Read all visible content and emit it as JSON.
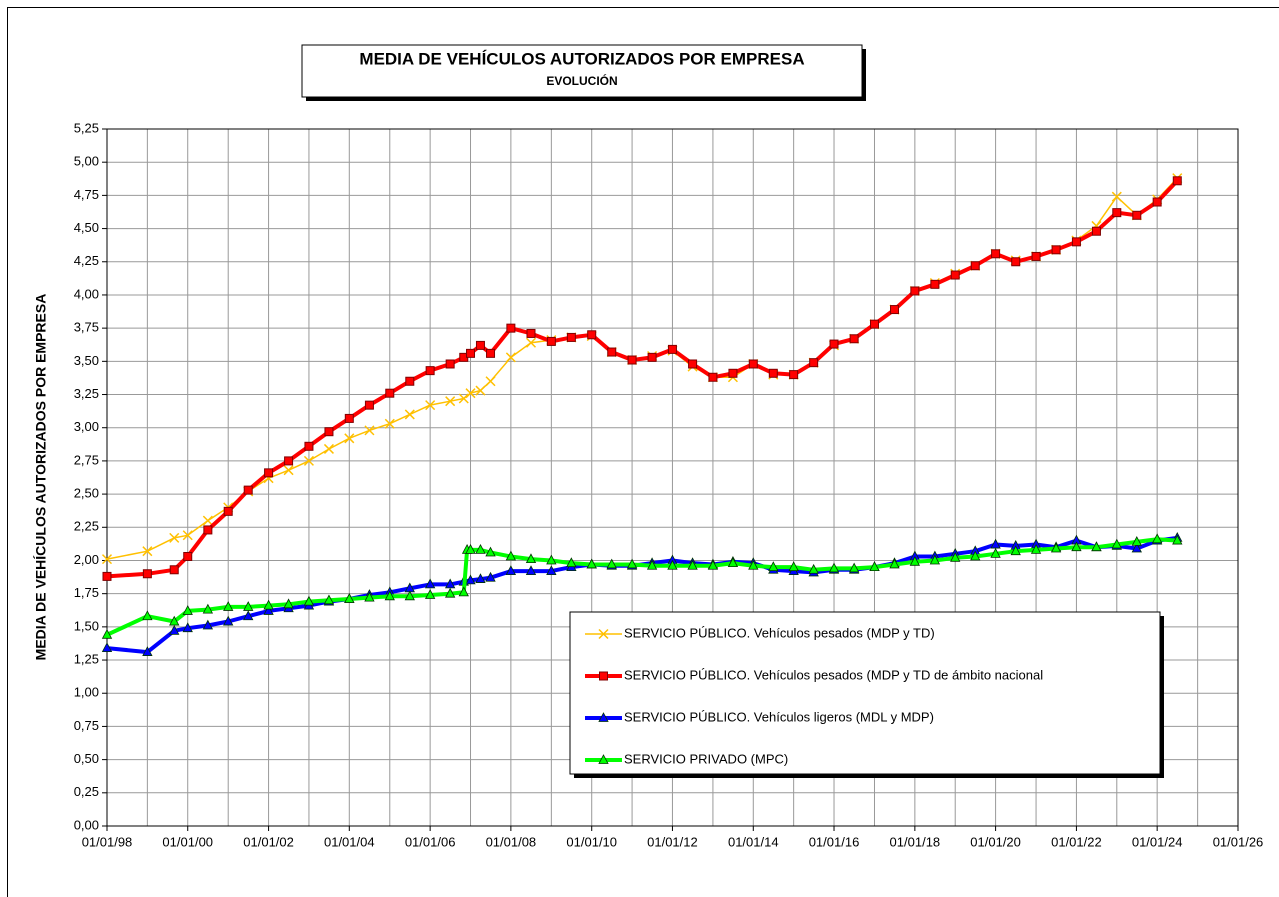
{
  "chart_data": {
    "type": "line",
    "title": "MEDIA DE VEHÍCULOS AUTORIZADOS POR EMPRESA",
    "subtitle": "EVOLUCIÓN",
    "ylabel": "MEDIA DE VEHÍCULOS AUTORIZADOS  POR EMPRESA",
    "xlim": [
      "1998-01-01",
      "2026-01-01"
    ],
    "xticks": [
      {
        "value": "1998-01-01",
        "label": "01/01/98"
      },
      {
        "value": "2000-01-01",
        "label": "01/01/00"
      },
      {
        "value": "2002-01-01",
        "label": "01/01/02"
      },
      {
        "value": "2004-01-01",
        "label": "01/01/04"
      },
      {
        "value": "2006-01-01",
        "label": "01/01/06"
      },
      {
        "value": "2008-01-01",
        "label": "01/01/08"
      },
      {
        "value": "2010-01-01",
        "label": "01/01/10"
      },
      {
        "value": "2012-01-01",
        "label": "01/01/12"
      },
      {
        "value": "2014-01-01",
        "label": "01/01/14"
      },
      {
        "value": "2016-01-01",
        "label": "01/01/16"
      },
      {
        "value": "2018-01-01",
        "label": "01/01/18"
      },
      {
        "value": "2020-01-01",
        "label": "01/01/20"
      },
      {
        "value": "2022-01-01",
        "label": "01/01/22"
      },
      {
        "value": "2024-01-01",
        "label": "01/01/24"
      },
      {
        "value": "2026-01-01",
        "label": "01/01/26"
      }
    ],
    "xminor_grid": [
      "1999-01-01",
      "2001-01-01",
      "2003-01-01",
      "2005-01-01",
      "2007-01-01",
      "2009-01-01",
      "2011-01-01",
      "2013-01-01",
      "2015-01-01",
      "2017-01-01",
      "2019-01-01",
      "2021-01-01",
      "2023-01-01",
      "2025-01-01"
    ],
    "ylim": [
      0,
      5.25
    ],
    "yticks": [
      {
        "value": 0,
        "label": "0,00"
      },
      {
        "value": 0.25,
        "label": "0,25"
      },
      {
        "value": 0.5,
        "label": "0,50"
      },
      {
        "value": 0.75,
        "label": "0,75"
      },
      {
        "value": 1,
        "label": "1,00"
      },
      {
        "value": 1.25,
        "label": "1,25"
      },
      {
        "value": 1.5,
        "label": "1,50"
      },
      {
        "value": 1.75,
        "label": "1,75"
      },
      {
        "value": 2,
        "label": "2,00"
      },
      {
        "value": 2.25,
        "label": "2,25"
      },
      {
        "value": 2.5,
        "label": "2,50"
      },
      {
        "value": 2.75,
        "label": "2,75"
      },
      {
        "value": 3,
        "label": "3,00"
      },
      {
        "value": 3.25,
        "label": "3,25"
      },
      {
        "value": 3.5,
        "label": "3,50"
      },
      {
        "value": 3.75,
        "label": "3,75"
      },
      {
        "value": 4,
        "label": "4,00"
      },
      {
        "value": 4.25,
        "label": "4,25"
      },
      {
        "value": 4.5,
        "label": "4,50"
      },
      {
        "value": 4.75,
        "label": "4,75"
      },
      {
        "value": 5,
        "label": "5,00"
      },
      {
        "value": 5.25,
        "label": "5,25"
      }
    ],
    "grid": true,
    "series": [
      {
        "name": "SERVICIO PÚBLICO. Vehículos pesados (MDP y TD)",
        "color": "#ffc000",
        "marker": "x",
        "width": 1.5,
        "x": [
          "1998-01-01",
          "1999-01-01",
          "1999-09-01",
          "2000-01-01",
          "2000-07-01",
          "2001-01-01",
          "2001-07-01",
          "2002-01-01",
          "2002-07-01",
          "2003-01-01",
          "2003-07-01",
          "2004-01-01",
          "2004-07-01",
          "2005-01-01",
          "2005-07-01",
          "2006-01-01",
          "2006-07-01",
          "2006-11-01",
          "2007-01-01",
          "2007-04-01",
          "2007-07-01",
          "2008-01-01",
          "2008-07-01",
          "2009-01-01",
          "2009-07-01",
          "2010-01-01",
          "2010-07-01",
          "2011-01-01",
          "2011-07-01",
          "2012-01-01",
          "2012-07-01",
          "2013-01-01",
          "2013-07-01",
          "2014-01-01",
          "2014-07-01",
          "2015-01-01",
          "2015-07-01",
          "2016-01-01",
          "2016-07-01",
          "2017-01-01",
          "2017-07-01",
          "2018-01-01",
          "2018-07-01",
          "2019-01-01",
          "2019-07-01",
          "2020-01-01",
          "2020-07-01",
          "2021-01-01",
          "2021-07-01",
          "2022-01-01",
          "2022-07-01",
          "2023-01-01",
          "2023-07-01",
          "2024-01-01",
          "2024-07-01"
        ],
        "values": [
          2.01,
          2.07,
          2.17,
          2.19,
          2.3,
          2.4,
          2.52,
          2.62,
          2.68,
          2.75,
          2.84,
          2.92,
          2.98,
          3.03,
          3.1,
          3.17,
          3.2,
          3.22,
          3.26,
          3.28,
          3.35,
          3.53,
          3.64,
          3.66,
          3.68,
          3.69,
          3.57,
          3.51,
          3.54,
          3.58,
          3.46,
          3.38,
          3.38,
          3.48,
          3.4,
          3.4,
          3.49,
          3.62,
          3.67,
          3.78,
          3.89,
          4.03,
          4.09,
          4.16,
          4.22,
          4.31,
          4.26,
          4.29,
          4.34,
          4.41,
          4.52,
          4.74,
          4.6,
          4.72,
          4.88
        ]
      },
      {
        "name": "SERVICIO PÚBLICO. Vehículos pesados (MDP y TD de ámbito nacional",
        "color": "#ff0000",
        "marker": "square",
        "width": 4,
        "x": [
          "1998-01-01",
          "1999-01-01",
          "1999-09-01",
          "2000-01-01",
          "2000-07-01",
          "2001-01-01",
          "2001-07-01",
          "2002-01-01",
          "2002-07-01",
          "2003-01-01",
          "2003-07-01",
          "2004-01-01",
          "2004-07-01",
          "2005-01-01",
          "2005-07-01",
          "2006-01-01",
          "2006-07-01",
          "2006-11-01",
          "2007-01-01",
          "2007-04-01",
          "2007-07-01",
          "2008-01-01",
          "2008-07-01",
          "2009-01-01",
          "2009-07-01",
          "2010-01-01",
          "2010-07-01",
          "2011-01-01",
          "2011-07-01",
          "2012-01-01",
          "2012-07-01",
          "2013-01-01",
          "2013-07-01",
          "2014-01-01",
          "2014-07-01",
          "2015-01-01",
          "2015-07-01",
          "2016-01-01",
          "2016-07-01",
          "2017-01-01",
          "2017-07-01",
          "2018-01-01",
          "2018-07-01",
          "2019-01-01",
          "2019-07-01",
          "2020-01-01",
          "2020-07-01",
          "2021-01-01",
          "2021-07-01",
          "2022-01-01",
          "2022-07-01",
          "2023-01-01",
          "2023-07-01",
          "2024-01-01",
          "2024-07-01"
        ],
        "values": [
          1.88,
          1.9,
          1.93,
          2.03,
          2.23,
          2.37,
          2.53,
          2.66,
          2.75,
          2.86,
          2.97,
          3.07,
          3.17,
          3.26,
          3.35,
          3.43,
          3.48,
          3.53,
          3.56,
          3.62,
          3.56,
          3.75,
          3.71,
          3.65,
          3.68,
          3.7,
          3.57,
          3.51,
          3.53,
          3.59,
          3.48,
          3.38,
          3.41,
          3.48,
          3.41,
          3.4,
          3.49,
          3.63,
          3.67,
          3.78,
          3.89,
          4.03,
          4.08,
          4.15,
          4.22,
          4.31,
          4.25,
          4.29,
          4.34,
          4.4,
          4.48,
          4.62,
          4.6,
          4.7,
          4.86
        ]
      },
      {
        "name": "SERVICIO PÚBLICO. Vehículos ligeros (MDL y MDP)",
        "color": "#0000ff",
        "marker": "triangle",
        "width": 4,
        "x": [
          "1998-01-01",
          "1999-01-01",
          "1999-09-01",
          "2000-01-01",
          "2000-07-01",
          "2001-01-01",
          "2001-07-01",
          "2002-01-01",
          "2002-07-01",
          "2003-01-01",
          "2003-07-01",
          "2004-01-01",
          "2004-07-01",
          "2005-01-01",
          "2005-07-01",
          "2006-01-01",
          "2006-07-01",
          "2006-11-01",
          "2007-01-01",
          "2007-04-01",
          "2007-07-01",
          "2008-01-01",
          "2008-07-01",
          "2009-01-01",
          "2009-07-01",
          "2010-01-01",
          "2010-07-01",
          "2011-01-01",
          "2011-07-01",
          "2012-01-01",
          "2012-07-01",
          "2013-01-01",
          "2013-07-01",
          "2014-01-01",
          "2014-07-01",
          "2015-01-01",
          "2015-07-01",
          "2016-01-01",
          "2016-07-01",
          "2017-01-01",
          "2017-07-01",
          "2018-01-01",
          "2018-07-01",
          "2019-01-01",
          "2019-07-01",
          "2020-01-01",
          "2020-07-01",
          "2021-01-01",
          "2021-07-01",
          "2022-01-01",
          "2022-07-01",
          "2023-01-01",
          "2023-07-01",
          "2024-01-01",
          "2024-07-01"
        ],
        "values": [
          1.34,
          1.31,
          1.47,
          1.49,
          1.51,
          1.54,
          1.58,
          1.62,
          1.64,
          1.66,
          1.69,
          1.71,
          1.74,
          1.76,
          1.79,
          1.82,
          1.82,
          1.84,
          1.85,
          1.86,
          1.87,
          1.92,
          1.92,
          1.92,
          1.95,
          1.97,
          1.96,
          1.96,
          1.98,
          2.0,
          1.98,
          1.97,
          1.99,
          1.98,
          1.93,
          1.92,
          1.91,
          1.93,
          1.93,
          1.95,
          1.98,
          2.03,
          2.03,
          2.05,
          2.07,
          2.12,
          2.11,
          2.12,
          2.1,
          2.15,
          2.1,
          2.11,
          2.09,
          2.15,
          2.17
        ]
      },
      {
        "name": "SERVICIO PRIVADO (MPC)",
        "color": "#00ff00",
        "marker": "triangle",
        "width": 4,
        "x": [
          "1998-01-01",
          "1999-01-01",
          "1999-09-01",
          "2000-01-01",
          "2000-07-01",
          "2001-01-01",
          "2001-07-01",
          "2002-01-01",
          "2002-07-01",
          "2003-01-01",
          "2003-07-01",
          "2004-01-01",
          "2004-07-01",
          "2005-01-01",
          "2005-07-01",
          "2006-01-01",
          "2006-07-01",
          "2006-11-01",
          "2006-12-01",
          "2007-01-01",
          "2007-04-01",
          "2007-07-01",
          "2008-01-01",
          "2008-07-01",
          "2009-01-01",
          "2009-07-01",
          "2010-01-01",
          "2010-07-01",
          "2011-01-01",
          "2011-07-01",
          "2012-01-01",
          "2012-07-01",
          "2013-01-01",
          "2013-07-01",
          "2014-01-01",
          "2014-07-01",
          "2015-01-01",
          "2015-07-01",
          "2016-01-01",
          "2016-07-01",
          "2017-01-01",
          "2017-07-01",
          "2018-01-01",
          "2018-07-01",
          "2019-01-01",
          "2019-07-01",
          "2020-01-01",
          "2020-07-01",
          "2021-01-01",
          "2021-07-01",
          "2022-01-01",
          "2022-07-01",
          "2023-01-01",
          "2023-07-01",
          "2024-01-01",
          "2024-07-01"
        ],
        "values": [
          1.44,
          1.58,
          1.54,
          1.62,
          1.63,
          1.65,
          1.65,
          1.66,
          1.67,
          1.69,
          1.7,
          1.71,
          1.72,
          1.73,
          1.73,
          1.74,
          1.75,
          1.76,
          2.08,
          2.08,
          2.08,
          2.06,
          2.03,
          2.01,
          2.0,
          1.98,
          1.97,
          1.97,
          1.97,
          1.96,
          1.96,
          1.96,
          1.96,
          1.98,
          1.96,
          1.95,
          1.95,
          1.93,
          1.94,
          1.94,
          1.95,
          1.97,
          1.99,
          2.0,
          2.02,
          2.03,
          2.05,
          2.07,
          2.08,
          2.09,
          2.1,
          2.1,
          2.12,
          2.14,
          2.16,
          2.15
        ]
      }
    ]
  }
}
